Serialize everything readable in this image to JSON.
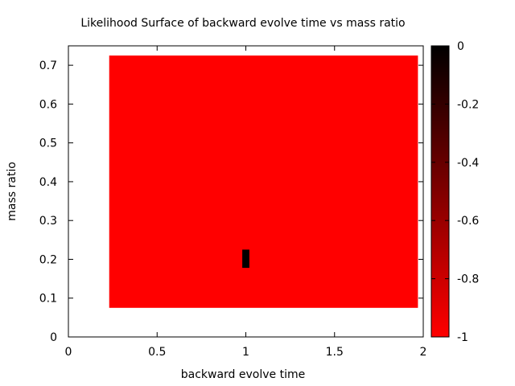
{
  "chart_data": {
    "type": "heatmap",
    "title": "Likelihood Surface of backward evolve time vs mass ratio",
    "xlabel": "backward evolve time",
    "ylabel": "mass ratio",
    "xlim": [
      0,
      2
    ],
    "ylim": [
      0,
      0.75
    ],
    "xticks": [
      "0",
      "0.5",
      "1",
      "1.5",
      "2"
    ],
    "yticks": [
      "0",
      "0.1",
      "0.2",
      "0.3",
      "0.4",
      "0.5",
      "0.6",
      "0.7"
    ],
    "colorbar": {
      "range": [
        -1,
        0
      ],
      "ticks": [
        "0",
        "-0.2",
        "-0.4",
        "-0.6",
        "-0.8",
        "-1"
      ],
      "color_low": "#ff0000",
      "color_high": "#000000"
    },
    "grid": false,
    "cells": [
      {
        "x0": 0.23,
        "x1": 1.97,
        "y0": 0.075,
        "y1": 0.725,
        "value": -1
      },
      {
        "x0": 0.98,
        "x1": 1.02,
        "y0": 0.178,
        "y1": 0.225,
        "value": 0
      }
    ]
  }
}
